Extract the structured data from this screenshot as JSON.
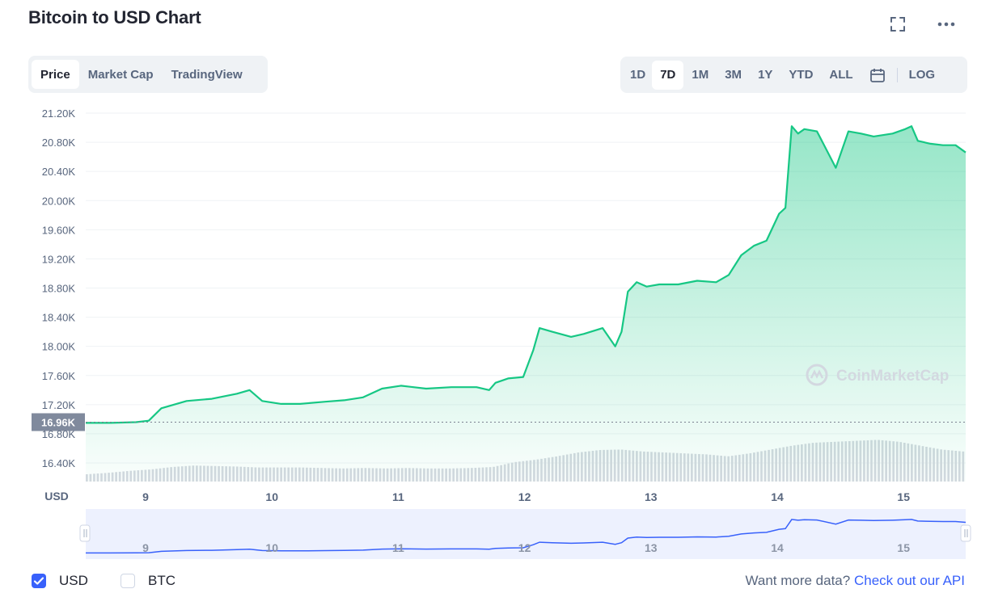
{
  "page": {
    "title": "Bitcoin to USD Chart"
  },
  "view_tabs": [
    {
      "label": "Price",
      "active": true
    },
    {
      "label": "Market Cap",
      "active": false
    },
    {
      "label": "TradingView",
      "active": false
    }
  ],
  "range_tabs": [
    {
      "label": "1D",
      "active": false
    },
    {
      "label": "7D",
      "active": true
    },
    {
      "label": "1M",
      "active": false
    },
    {
      "label": "3M",
      "active": false
    },
    {
      "label": "1Y",
      "active": false
    },
    {
      "label": "YTD",
      "active": false
    },
    {
      "label": "ALL",
      "active": false
    }
  ],
  "log_label": "LOG",
  "icons": {
    "fullscreen": "fullscreen-icon",
    "more": "more-icon",
    "calendar": "calendar-icon",
    "brand": "coinmarketcap-logo-icon"
  },
  "colors": {
    "price_line": "#16c784",
    "accent": "#3861fb",
    "current_price_bg": "#808a9d"
  },
  "chart_data": {
    "type": "area",
    "ylabel_unit": "USD",
    "y_ticks": [
      "21.20K",
      "20.80K",
      "20.40K",
      "20.00K",
      "19.60K",
      "19.20K",
      "18.80K",
      "18.40K",
      "18.00K",
      "17.60K",
      "17.20K",
      "16.80K",
      "16.40K"
    ],
    "x_ticks": [
      "9",
      "10",
      "11",
      "12",
      "13",
      "14",
      "15"
    ],
    "ylim": [
      16.4,
      21.2
    ],
    "current_price_label": "16.96K",
    "current_price": 16.96,
    "watermark": "CoinMarketCap",
    "series": [
      {
        "x": [
          8.5,
          8.7,
          8.9,
          9.0,
          9.1,
          9.3,
          9.5,
          9.7,
          9.8,
          9.9,
          10.05,
          10.2,
          10.4,
          10.55,
          10.7,
          10.85,
          11.0,
          11.2,
          11.4,
          11.6,
          11.7,
          11.75,
          11.85,
          11.97,
          12.05,
          12.1,
          12.2,
          12.35,
          12.45,
          12.6,
          12.7,
          12.75,
          12.8,
          12.87,
          12.95,
          13.05,
          13.2,
          13.35,
          13.5,
          13.6,
          13.7,
          13.8,
          13.9,
          14.0,
          14.05,
          14.1,
          14.15,
          14.2,
          14.3,
          14.45,
          14.55,
          14.65,
          14.75,
          14.9,
          15.0,
          15.05,
          15.1,
          15.2,
          15.3,
          15.4,
          15.48
        ],
        "values": [
          16.95,
          16.95,
          16.96,
          16.98,
          17.15,
          17.25,
          17.28,
          17.35,
          17.4,
          17.25,
          17.21,
          17.21,
          17.24,
          17.26,
          17.3,
          17.42,
          17.46,
          17.42,
          17.44,
          17.44,
          17.4,
          17.5,
          17.56,
          17.58,
          17.95,
          18.25,
          18.2,
          18.13,
          18.17,
          18.25,
          18.0,
          18.2,
          18.75,
          18.88,
          18.82,
          18.85,
          18.85,
          18.9,
          18.88,
          18.98,
          19.25,
          19.38,
          19.45,
          19.82,
          19.9,
          21.02,
          20.92,
          20.98,
          20.95,
          20.45,
          20.95,
          20.92,
          20.88,
          20.92,
          20.98,
          21.02,
          20.82,
          20.78,
          20.76,
          20.76,
          20.66
        ]
      }
    ],
    "volume": [
      0.15,
      0.18,
      0.22,
      0.25,
      0.3,
      0.33,
      0.32,
      0.31,
      0.29,
      0.29,
      0.29,
      0.28,
      0.27,
      0.28,
      0.27,
      0.28,
      0.27,
      0.27,
      0.28,
      0.3,
      0.4,
      0.45,
      0.52,
      0.6,
      0.65,
      0.66,
      0.62,
      0.6,
      0.58,
      0.56,
      0.52,
      0.58,
      0.66,
      0.74,
      0.8,
      0.82,
      0.84,
      0.86,
      0.82,
      0.74,
      0.66,
      0.62
    ],
    "navigator": {
      "x_ticks": [
        "9",
        "10",
        "11",
        "12",
        "13",
        "14",
        "15"
      ]
    }
  },
  "footer": {
    "usd_label": "USD",
    "usd_checked": true,
    "btc_label": "BTC",
    "btc_checked": false,
    "more_data_text": "Want more data?",
    "api_link_text": "Check out our API"
  }
}
